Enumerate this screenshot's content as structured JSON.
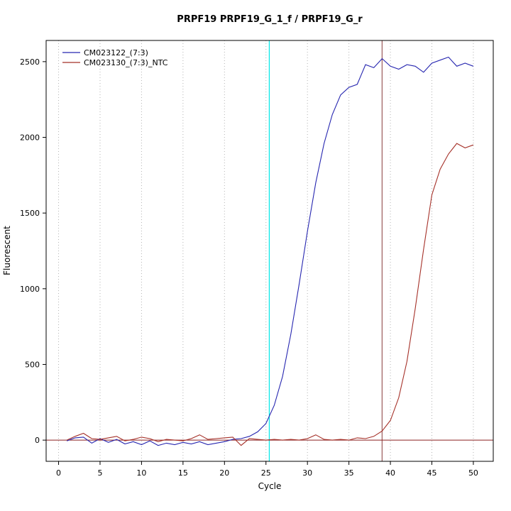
{
  "chart_data": {
    "type": "line",
    "title": "PRPF19  PRPF19_G_1_f / PRPF19_G_r",
    "xlabel": "Cycle",
    "ylabel": "Fluorescent",
    "xlim": [
      -1.5,
      52.4
    ],
    "ylim": [
      -140,
      2640
    ],
    "xticks": [
      0,
      5,
      10,
      15,
      20,
      25,
      30,
      35,
      40,
      45,
      50
    ],
    "yticks": [
      0,
      500,
      1000,
      1500,
      2000,
      2500
    ],
    "grid": {
      "vertical_dotted_at": [
        0,
        5,
        10,
        15,
        20,
        25,
        30,
        35,
        40,
        45,
        50
      ],
      "color": "#b3b3b3"
    },
    "threshold_line": {
      "y": 0,
      "color": "#8b2222"
    },
    "ct_lines": [
      {
        "x": 25.4,
        "color": "#00e8e8",
        "label": "ct-line-CM023122"
      },
      {
        "x": 39.0,
        "color": "#9b5a5a",
        "label": "ct-line-CM023130"
      }
    ],
    "legend": {
      "position": "top-left",
      "entries": [
        {
          "label": "CM023122_(7:3)",
          "color": "#2626b0"
        },
        {
          "label": "CM023130_(7:3)_NTC",
          "color": "#a53028"
        }
      ]
    },
    "series": [
      {
        "name": "CM023122_(7:3)",
        "color": "#2626b0",
        "x": [
          1,
          2,
          3,
          4,
          5,
          6,
          7,
          8,
          9,
          10,
          11,
          12,
          13,
          14,
          15,
          16,
          17,
          18,
          19,
          20,
          21,
          22,
          23,
          24,
          25,
          26,
          27,
          28,
          29,
          30,
          31,
          32,
          33,
          34,
          35,
          36,
          37,
          38,
          39,
          40,
          41,
          42,
          43,
          44,
          45,
          46,
          47,
          48,
          49,
          50
        ],
        "values": [
          -5,
          15,
          20,
          -20,
          10,
          -15,
          5,
          -25,
          -10,
          -30,
          -5,
          -35,
          -20,
          -30,
          -15,
          -25,
          -10,
          -30,
          -20,
          -10,
          5,
          10,
          25,
          55,
          110,
          230,
          420,
          700,
          1030,
          1380,
          1700,
          1960,
          2150,
          2280,
          2330,
          2350,
          2480,
          2460,
          2520,
          2470,
          2450,
          2480,
          2470,
          2430,
          2490,
          2510,
          2530,
          2470,
          2490,
          2470
        ]
      },
      {
        "name": "CM023130_(7:3)_NTC",
        "color": "#a53028",
        "x": [
          1,
          2,
          3,
          4,
          5,
          6,
          7,
          8,
          9,
          10,
          11,
          12,
          13,
          14,
          15,
          16,
          17,
          18,
          19,
          20,
          21,
          22,
          23,
          24,
          25,
          26,
          27,
          28,
          29,
          30,
          31,
          32,
          33,
          34,
          35,
          36,
          37,
          38,
          39,
          40,
          41,
          42,
          43,
          44,
          45,
          46,
          47,
          48,
          49,
          50
        ],
        "values": [
          0,
          25,
          45,
          10,
          5,
          15,
          25,
          -5,
          5,
          20,
          10,
          -10,
          5,
          0,
          -5,
          10,
          35,
          5,
          10,
          15,
          20,
          -35,
          10,
          5,
          0,
          5,
          0,
          5,
          0,
          10,
          35,
          5,
          0,
          5,
          0,
          15,
          10,
          25,
          60,
          130,
          280,
          520,
          870,
          1260,
          1620,
          1790,
          1890,
          1960,
          1930,
          1950
        ]
      }
    ]
  }
}
